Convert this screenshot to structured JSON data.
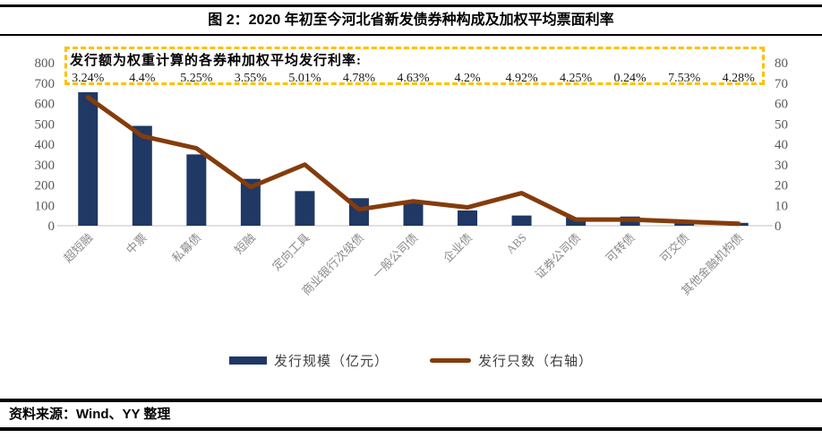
{
  "header": {
    "title": "图 2：2020 年初至今河北省新发债券种构成及加权平均票面利率"
  },
  "chart_data": {
    "type": "bar",
    "categories": [
      "超短融",
      "中票",
      "私募债",
      "短融",
      "定向工具",
      "商业银行次级债",
      "一般公司债",
      "企业债",
      "ABS",
      "证券公司债",
      "可转债",
      "可交债",
      "其他金融机构债"
    ],
    "series": [
      {
        "name": "发行规模（亿元）",
        "type": "bar",
        "axis": "left",
        "values": [
          655,
          490,
          350,
          230,
          170,
          135,
          110,
          75,
          50,
          40,
          45,
          23,
          14
        ]
      },
      {
        "name": "发行只数（右轴）",
        "type": "line",
        "axis": "right",
        "values": [
          63,
          44,
          38,
          19,
          30,
          8,
          12,
          9,
          16,
          3,
          3,
          2,
          1
        ]
      }
    ],
    "annotation": {
      "title": "发行额为权重计算的各券种加权平均发行利率:",
      "rates": [
        "3.24%",
        "4.4%",
        "5.25%",
        "3.55%",
        "5.01%",
        "4.78%",
        "4.63%",
        "4.2%",
        "4.92%",
        "4.25%",
        "0.24%",
        "7.53%",
        "4.28%"
      ]
    },
    "left_axis": {
      "min": 0,
      "max": 800,
      "step": 100
    },
    "right_axis": {
      "min": 0,
      "max": 80,
      "step": 10
    },
    "legend_position": "bottom",
    "grid": false,
    "colors": {
      "bar": "#1f3864",
      "line": "#843c0c",
      "annotation_border": "#ffc000",
      "axis_text": "#595959",
      "category_text": "#8a8a8a",
      "baseline": "#d6d6d6"
    }
  },
  "footer": {
    "source": "资料来源：Wind、YY 整理"
  }
}
